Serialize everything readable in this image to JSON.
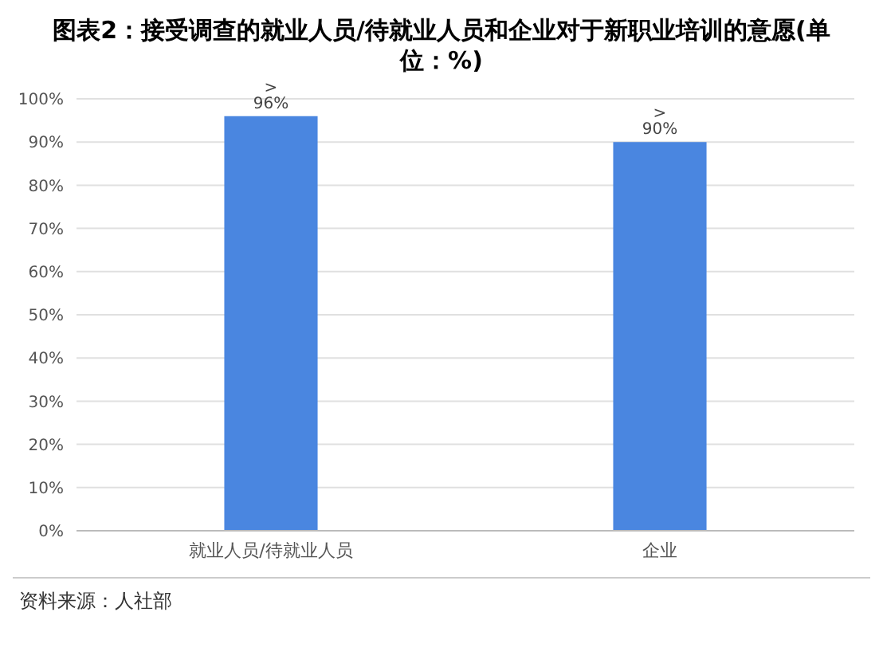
{
  "chart_data": {
    "type": "bar",
    "title": "图表2：接受调查的就业人员/待就业人员和企业对于新职业培训的意愿(单位：%)",
    "categories": [
      "就业人员/待就业人员",
      "企业"
    ],
    "values": [
      96,
      90
    ],
    "color": "#4a86e0",
    "value_labels": [
      "> 96%",
      "> 90%"
    ],
    "ylim": [
      0,
      100
    ],
    "yticks": [
      {
        "value": 0,
        "label": "0%"
      },
      {
        "value": 10,
        "label": "10%"
      },
      {
        "value": 20,
        "label": "20%"
      },
      {
        "value": 30,
        "label": "30%"
      },
      {
        "value": 40,
        "label": "40%"
      },
      {
        "value": 50,
        "label": "50%"
      },
      {
        "value": 60,
        "label": "60%"
      },
      {
        "value": 70,
        "label": "70%"
      },
      {
        "value": 80,
        "label": "80%"
      },
      {
        "value": 90,
        "label": "90%"
      },
      {
        "value": 100,
        "label": "100%"
      }
    ],
    "grid": "y",
    "annotations": [
      "资料来源：人社部"
    ]
  }
}
